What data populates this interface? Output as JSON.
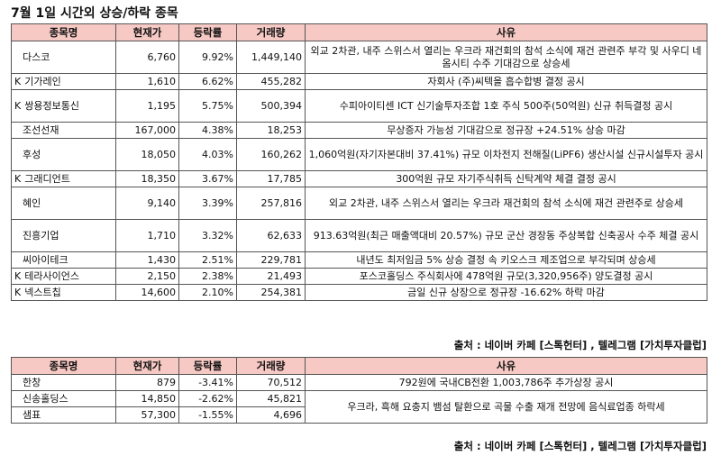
{
  "title": "7월 1일  시간외 상승/하락 종목",
  "headers": [
    "종목명",
    "현재가",
    "등락률",
    "거래량",
    "사유"
  ],
  "rise_rows": [
    {
      "name": "다스코",
      "prefix": "",
      "price": "6,760",
      "rate": "9.92%",
      "volume": "1,449,140",
      "reason": "외교 2차관, 내주 스위스서 열리는 우크라 재건회의 참석 소식에 재건 관련주 부각 및 사우디 네옴시티 수주 기대감으로 상승세"
    },
    {
      "name": "기가레인",
      "prefix": "K",
      "price": "1,610",
      "rate": "6.62%",
      "volume": "455,282",
      "reason": "자회사 (주)씨텍을 흡수합병 결정 공시"
    },
    {
      "name": "쌍용정보통신",
      "prefix": "K",
      "price": "1,195",
      "rate": "5.75%",
      "volume": "500,394",
      "reason": "수피아이티센 ICT 신기술투자조합 1호 주식 500주(50억원) 신규 취득결정 공시"
    },
    {
      "name": "조선선재",
      "prefix": "",
      "price": "167,000",
      "rate": "4.38%",
      "volume": "18,253",
      "reason": "무상증자 가능성 기대감으로 정규장 +24.51% 상승 마감"
    },
    {
      "name": "후성",
      "prefix": "",
      "price": "18,050",
      "rate": "4.03%",
      "volume": "160,262",
      "reason": "1,060억원(자기자본대비 37.41%) 규모 이차전지 전해질(LiPF6) 생산시설 신규시설투자 공시"
    },
    {
      "name": "그래디언트",
      "prefix": "K",
      "price": "18,350",
      "rate": "3.67%",
      "volume": "17,785",
      "reason": "300억원 규모 자기주식취득 신탁계약 체결 결정 공시"
    },
    {
      "name": "혜인",
      "prefix": "",
      "price": "9,140",
      "rate": "3.39%",
      "volume": "257,816",
      "reason": "외교 2차관, 내주 스위스서 열리는 우크라 재건회의 참석 소식에 재건 관련주로 상승세"
    },
    {
      "name": "진흥기업",
      "prefix": "",
      "price": "1,710",
      "rate": "3.32%",
      "volume": "62,633",
      "reason": "913.63억원(최근 매출액대비 20.57%) 규모 군산 경장동 주상복합 신축공사 수주 체결 공시"
    },
    {
      "name": "씨아이테크",
      "prefix": "",
      "price": "1,430",
      "rate": "2.51%",
      "volume": "229,781",
      "reason": "내년도 최저임금 5% 상승 결정 속 키오스크 제조업으로 부각되며 상승세"
    },
    {
      "name": "테라사이언스",
      "prefix": "K",
      "price": "2,150",
      "rate": "2.38%",
      "volume": "21,493",
      "reason": "포스코홀딩스 주식회사에 478억원 규모(3,320,956주) 양도결정 공시"
    },
    {
      "name": "넥스트칩",
      "prefix": "K",
      "price": "14,600",
      "rate": "2.10%",
      "volume": "254,381",
      "reason": "금일 신규 상장으로 정규장 -16.62% 하락 마감"
    }
  ],
  "fall_rows": [
    {
      "name": "한창",
      "prefix": "",
      "price": "879",
      "rate": "-3.41%",
      "volume": "70,512",
      "reason": "792원에 국내CB전환 1,003,786주 추가상장 공시"
    },
    {
      "name": "신송홀딩스",
      "prefix": "",
      "price": "14,850",
      "rate": "-2.62%",
      "volume": "45,821",
      "reason": "우크라, 흑해 요충지 뱀섬 탈환으로 곡물 수출 재개 전망에 음식료업종 하락세"
    },
    {
      "name": "샘표",
      "prefix": "",
      "price": "57,300",
      "rate": "-1.55%",
      "volume": "4,696",
      "reason": ""
    }
  ],
  "source": "출처 : 네이버 카페 [스톡헌터] , 텔레그램 [가치투자클럽]"
}
